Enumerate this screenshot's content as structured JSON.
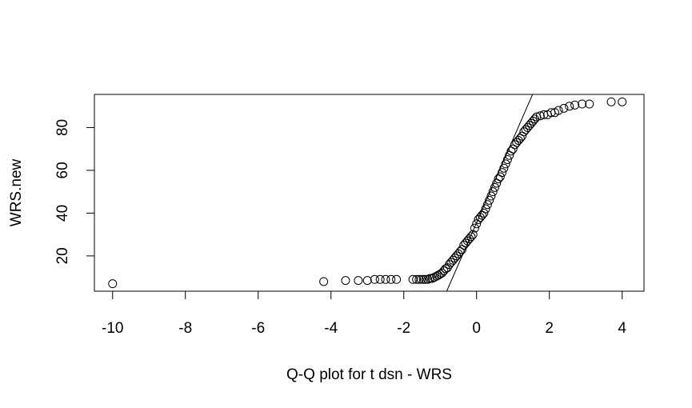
{
  "chart_data": {
    "type": "scatter",
    "title": "",
    "xlabel": "Q-Q plot for t dsn - WRS",
    "ylabel": "WRS.new",
    "xlim": [
      -10.5,
      4.6
    ],
    "ylim": [
      3.5,
      95.5
    ],
    "xticks": [
      -10,
      -8,
      -6,
      -4,
      -2,
      0,
      2,
      4
    ],
    "yticks": [
      20,
      40,
      60,
      80
    ],
    "grid": false,
    "legend": "none",
    "reference_line": {
      "intercept": 35.5,
      "slope": 39.0
    },
    "points": [
      [
        -10.0,
        7.0
      ],
      [
        -4.2,
        8.0
      ],
      [
        -3.6,
        8.5
      ],
      [
        -3.25,
        8.5
      ],
      [
        -3.0,
        8.5
      ],
      [
        -2.8,
        9.0
      ],
      [
        -2.65,
        9.0
      ],
      [
        -2.5,
        9.0
      ],
      [
        -2.35,
        9.0
      ],
      [
        -2.2,
        9.0
      ],
      [
        -1.75,
        9.0
      ],
      [
        -1.65,
        9.0
      ],
      [
        -1.58,
        9.0
      ],
      [
        -1.52,
        9.0
      ],
      [
        -1.46,
        9.0
      ],
      [
        -1.4,
        9.0
      ],
      [
        -1.34,
        9.0
      ],
      [
        -1.28,
        9.5
      ],
      [
        -1.22,
        9.5
      ],
      [
        -1.16,
        10.0
      ],
      [
        -1.1,
        10.5
      ],
      [
        -1.05,
        11.0
      ],
      [
        -1.0,
        11.5
      ],
      [
        -0.95,
        12.0
      ],
      [
        -0.9,
        13.0
      ],
      [
        -0.85,
        14.0
      ],
      [
        -0.8,
        14.5
      ],
      [
        -0.75,
        16.0
      ],
      [
        -0.7,
        17.0
      ],
      [
        -0.65,
        18.0
      ],
      [
        -0.6,
        19.0
      ],
      [
        -0.55,
        20.0
      ],
      [
        -0.5,
        21.0
      ],
      [
        -0.45,
        22.0
      ],
      [
        -0.4,
        23.0
      ],
      [
        -0.35,
        25.0
      ],
      [
        -0.3,
        26.0
      ],
      [
        -0.25,
        27.0
      ],
      [
        -0.2,
        28.0
      ],
      [
        -0.15,
        29.0
      ],
      [
        -0.1,
        30.0
      ],
      [
        -0.05,
        33.0
      ],
      [
        0.0,
        35.0
      ],
      [
        0.05,
        37.0
      ],
      [
        0.1,
        38.0
      ],
      [
        0.15,
        39.0
      ],
      [
        0.2,
        40.0
      ],
      [
        0.25,
        42.0
      ],
      [
        0.3,
        44.0
      ],
      [
        0.35,
        46.0
      ],
      [
        0.4,
        48.0
      ],
      [
        0.45,
        50.0
      ],
      [
        0.5,
        52.0
      ],
      [
        0.55,
        54.0
      ],
      [
        0.6,
        56.0
      ],
      [
        0.65,
        57.0
      ],
      [
        0.7,
        59.0
      ],
      [
        0.75,
        61.0
      ],
      [
        0.8,
        63.0
      ],
      [
        0.85,
        65.0
      ],
      [
        0.9,
        67.0
      ],
      [
        0.95,
        69.0
      ],
      [
        1.0,
        70.0
      ],
      [
        1.05,
        72.0
      ],
      [
        1.1,
        73.0
      ],
      [
        1.15,
        74.0
      ],
      [
        1.2,
        75.0
      ],
      [
        1.25,
        76.0
      ],
      [
        1.3,
        78.0
      ],
      [
        1.35,
        79.0
      ],
      [
        1.4,
        80.0
      ],
      [
        1.45,
        81.0
      ],
      [
        1.5,
        82.0
      ],
      [
        1.55,
        83.0
      ],
      [
        1.6,
        84.0
      ],
      [
        1.65,
        85.0
      ],
      [
        1.75,
        85.5
      ],
      [
        1.85,
        86.0
      ],
      [
        1.95,
        86.0
      ],
      [
        2.05,
        87.0
      ],
      [
        2.15,
        87.0
      ],
      [
        2.25,
        88.0
      ],
      [
        2.4,
        89.0
      ],
      [
        2.55,
        90.0
      ],
      [
        2.7,
        90.5
      ],
      [
        2.9,
        91.0
      ],
      [
        3.1,
        91.0
      ],
      [
        3.7,
        92.0
      ],
      [
        4.0,
        92.0
      ]
    ]
  }
}
